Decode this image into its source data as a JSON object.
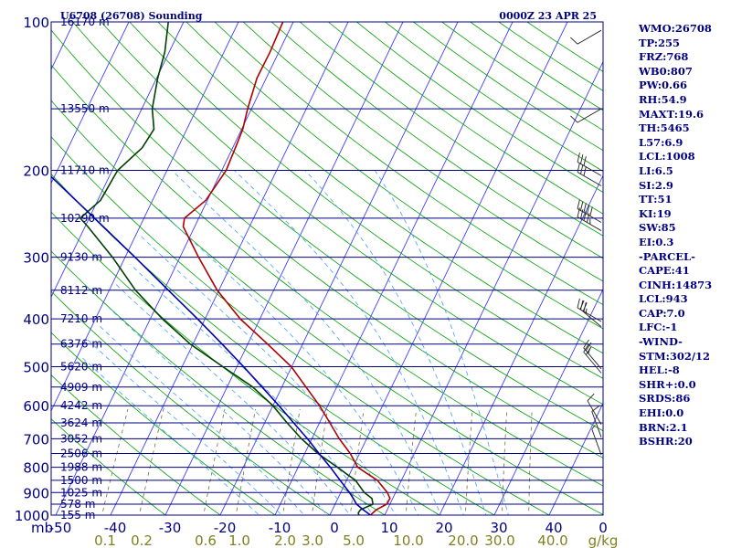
{
  "header": {
    "station": "U6708 (26708) Sounding",
    "time": "0000Z 23 APR 25"
  },
  "chart_data": {
    "type": "skew-t",
    "title": "U6708 (26708) Sounding",
    "subtitle": "0000Z 23 APR 25",
    "y_axis_unit": "mb",
    "pressure_ticks": [
      100,
      200,
      300,
      400,
      500,
      600,
      700,
      800,
      900,
      1000
    ],
    "pressure_range": [
      1000,
      100
    ],
    "temperature_ticks": [
      -50,
      -40,
      -30,
      -20,
      -10,
      0,
      10,
      20,
      30,
      40,
      0
    ],
    "temperature_range": [
      -50,
      50
    ],
    "mixing_ratio_unit": "g/kg",
    "mixing_ratio_ticks": [
      {
        "label": "0.1",
        "value": 0.1
      },
      {
        "label": "0.2",
        "value": 0.2
      },
      {
        "label": "0.6",
        "value": 0.6
      },
      {
        "label": "1.0",
        "value": 1.0
      },
      {
        "label": "2.0",
        "value": 2.0
      },
      {
        "label": "3.0",
        "value": 3.0
      },
      {
        "label": "5.0",
        "value": 5.0
      },
      {
        "label": "10.0",
        "value": 10.0
      },
      {
        "label": "20.0",
        "value": 20.0
      },
      {
        "label": "30.0",
        "value": 30.0
      },
      {
        "label": "40.0",
        "value": 40.0
      }
    ],
    "height_labels": [
      {
        "p": 100,
        "label": "16170 m"
      },
      {
        "p": 150,
        "label": "13550 m"
      },
      {
        "p": 200,
        "label": "11710 m"
      },
      {
        "p": 250,
        "label": "10290 m"
      },
      {
        "p": 300,
        "label": "9130 m"
      },
      {
        "p": 350,
        "label": "8112 m"
      },
      {
        "p": 400,
        "label": "7210 m"
      },
      {
        "p": 450,
        "label": "6376 m"
      },
      {
        "p": 500,
        "label": "5620 m"
      },
      {
        "p": 550,
        "label": "4909 m"
      },
      {
        "p": 600,
        "label": "4242 m"
      },
      {
        "p": 650,
        "label": "3624 m"
      },
      {
        "p": 700,
        "label": "3052 m"
      },
      {
        "p": 750,
        "label": "2506 m"
      },
      {
        "p": 800,
        "label": "1988 m"
      },
      {
        "p": 850,
        "label": "1500 m"
      },
      {
        "p": 900,
        "label": "1025 m"
      },
      {
        "p": 950,
        "label": "578 m"
      },
      {
        "p": 1000,
        "label": "155 m"
      }
    ],
    "series": [
      {
        "name": "",
        "color": "#b00000",
        "points": [
          {
            "p": 1000,
            "t": 7.4
          },
          {
            "p": 975,
            "t": 8.0
          },
          {
            "p": 950,
            "t": 9.4
          },
          {
            "p": 925,
            "t": 9.5
          },
          {
            "p": 900,
            "t": 8.5
          },
          {
            "p": 850,
            "t": 5.6
          },
          {
            "p": 800,
            "t": 0.9
          },
          {
            "p": 750,
            "t": -1.7
          },
          {
            "p": 700,
            "t": -5.0
          },
          {
            "p": 650,
            "t": -8.1
          },
          {
            "p": 600,
            "t": -11.5
          },
          {
            "p": 550,
            "t": -15.6
          },
          {
            "p": 500,
            "t": -20.1
          },
          {
            "p": 450,
            "t": -26.4
          },
          {
            "p": 400,
            "t": -33.6
          },
          {
            "p": 350,
            "t": -40.3
          },
          {
            "p": 300,
            "t": -46.6
          },
          {
            "p": 260,
            "t": -52.1
          },
          {
            "p": 250,
            "t": -52.6
          },
          {
            "p": 230,
            "t": -50.3
          },
          {
            "p": 200,
            "t": -49.2
          },
          {
            "p": 180,
            "t": -49.5
          },
          {
            "p": 165,
            "t": -49.8
          },
          {
            "p": 150,
            "t": -50.7
          },
          {
            "p": 130,
            "t": -51.7
          },
          {
            "p": 115,
            "t": -51.6
          },
          {
            "p": 100,
            "t": -51.9
          }
        ]
      },
      {
        "name": "",
        "color": "#004000",
        "points": [
          {
            "p": 1000,
            "t": 5.3
          },
          {
            "p": 990,
            "t": 5.0
          },
          {
            "p": 975,
            "t": 5.1
          },
          {
            "p": 950,
            "t": 6.9
          },
          {
            "p": 925,
            "t": 6.2
          },
          {
            "p": 900,
            "t": 4.3
          },
          {
            "p": 850,
            "t": 1.6
          },
          {
            "p": 800,
            "t": -2.8
          },
          {
            "p": 750,
            "t": -7.6
          },
          {
            "p": 700,
            "t": -11.9
          },
          {
            "p": 650,
            "t": -15.9
          },
          {
            "p": 600,
            "t": -20.0
          },
          {
            "p": 550,
            "t": -25.3
          },
          {
            "p": 500,
            "t": -32.6
          },
          {
            "p": 450,
            "t": -40.5
          },
          {
            "p": 400,
            "t": -47.8
          },
          {
            "p": 350,
            "t": -55.2
          },
          {
            "p": 300,
            "t": -62.3
          },
          {
            "p": 260,
            "t": -69.5
          },
          {
            "p": 250,
            "t": -71.6
          },
          {
            "p": 230,
            "t": -69.5
          },
          {
            "p": 200,
            "t": -69.0
          },
          {
            "p": 180,
            "t": -66.5
          },
          {
            "p": 165,
            "t": -66.0
          },
          {
            "p": 150,
            "t": -68.1
          },
          {
            "p": 130,
            "t": -69.8
          },
          {
            "p": 115,
            "t": -70.8
          },
          {
            "p": 100,
            "t": -72.8
          }
        ]
      },
      {
        "name": "",
        "color": "#0000b0",
        "points": [
          {
            "p": 1000,
            "t": 7.4
          },
          {
            "p": 975,
            "t": 5.6
          },
          {
            "p": 950,
            "t": 3.9
          },
          {
            "p": 925,
            "t": 2.8
          },
          {
            "p": 900,
            "t": 1.6
          },
          {
            "p": 850,
            "t": -1.2
          },
          {
            "p": 800,
            "t": -4.1
          },
          {
            "p": 750,
            "t": -7.4
          },
          {
            "p": 700,
            "t": -10.8
          },
          {
            "p": 650,
            "t": -14.7
          },
          {
            "p": 600,
            "t": -18.9
          },
          {
            "p": 550,
            "t": -23.6
          },
          {
            "p": 500,
            "t": -28.8
          },
          {
            "p": 450,
            "t": -34.7
          },
          {
            "p": 400,
            "t": -41.4
          },
          {
            "p": 350,
            "t": -49.2
          },
          {
            "p": 300,
            "t": -58.2
          },
          {
            "p": 250,
            "t": -69.0
          },
          {
            "p": 200,
            "t": -82.3
          },
          {
            "p": 150,
            "t": -99.4
          },
          {
            "p": 115,
            "t": -116.0
          }
        ]
      }
    ],
    "wind_barbs": [
      {
        "p": 104,
        "direction": 240,
        "speed": 10
      },
      {
        "p": 150,
        "direction": 240,
        "speed": 10
      },
      {
        "p": 205,
        "direction": 300,
        "speed": 30
      },
      {
        "p": 215,
        "direction": 300,
        "speed": 30
      },
      {
        "p": 255,
        "direction": 300,
        "speed": 50
      },
      {
        "p": 265,
        "direction": 300,
        "speed": 45
      },
      {
        "p": 405,
        "direction": 300,
        "speed": 30
      },
      {
        "p": 415,
        "direction": 310,
        "speed": 25
      },
      {
        "p": 505,
        "direction": 320,
        "speed": 25
      },
      {
        "p": 515,
        "direction": 320,
        "speed": 20
      },
      {
        "p": 655,
        "direction": 330,
        "speed": 10
      },
      {
        "p": 695,
        "direction": 340,
        "speed": 10
      },
      {
        "p": 755,
        "direction": 340,
        "speed": 5
      }
    ]
  },
  "indices": [
    "WMO:26708",
    "TP:255",
    "FRZ:768",
    "WB0:807",
    "PW:0.66",
    "RH:54.9",
    "MAXT:19.6",
    "TH:5465",
    "L57:6.9",
    "LCL:1008",
    "LI:6.5",
    "SI:2.9",
    "TT:51",
    "KI:19",
    "SW:85",
    "EI:0.3",
    "-PARCEL-",
    "CAPE:41",
    "CINH:14873",
    "LCL:943",
    "CAP:7.0",
    "LFC:-1",
    "-WIND-",
    "STM:302/12",
    "HEL:-8",
    "SHR+:0.0",
    "SRDS:86",
    "EHI:0.0",
    "BRN:2.1",
    "BSHR:20"
  ],
  "colors": {
    "isobar": "#000080",
    "isotherm": "#4040ff",
    "dry_adiabat": "#00a000",
    "moist_adiabat": "#40a0ff",
    "mixing_ratio": "#707040",
    "barb": "#202020"
  }
}
